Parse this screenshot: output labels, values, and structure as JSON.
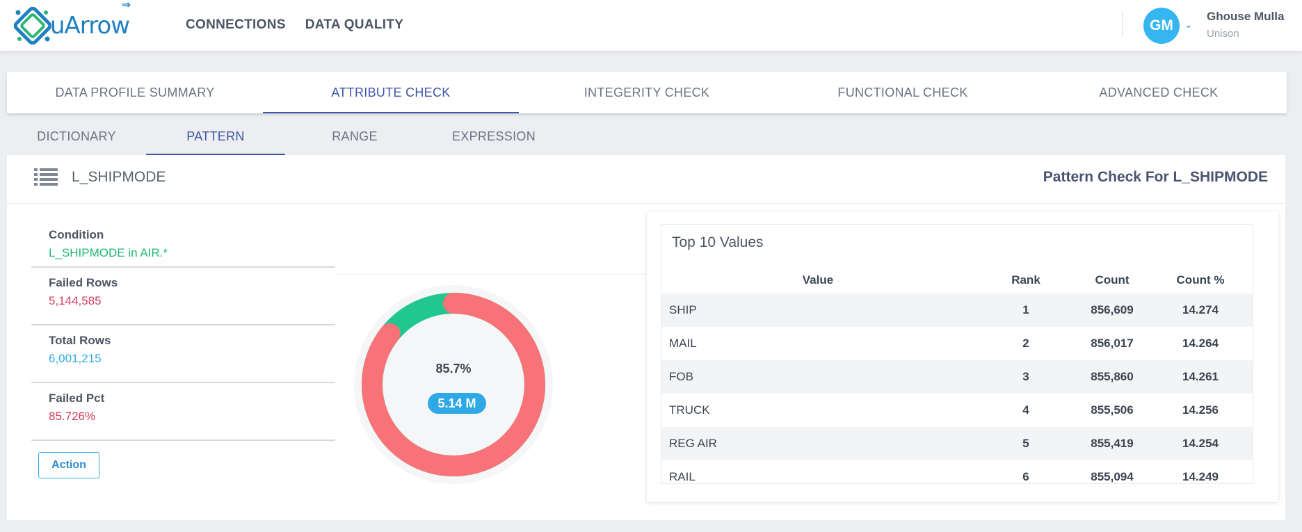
{
  "header": {
    "logo_text": "uArrow",
    "nav": [
      "CONNECTIONS",
      "DATA QUALITY"
    ],
    "user": {
      "initials": "GM",
      "name": "Ghouse Mulla",
      "org": "Unison"
    }
  },
  "main_tabs": [
    "DATA PROFILE SUMMARY",
    "ATTRIBUTE CHECK",
    "INTEGERITY CHECK",
    "FUNCTIONAL CHECK",
    "ADVANCED CHECK"
  ],
  "sub_tabs": [
    "DICTIONARY",
    "PATTERN",
    "RANGE",
    "EXPRESSION"
  ],
  "card": {
    "field": "L_SHIPMODE",
    "title": "Pattern Check For L_SHIPMODE",
    "stats": [
      {
        "label": "Condition",
        "value": "L_SHIPMODE in AIR.*"
      },
      {
        "label": "Failed Rows",
        "value": "5,144,585"
      },
      {
        "label": "Total Rows",
        "value": "6,001,215"
      },
      {
        "label": "Failed Pct",
        "value": "85.726%"
      }
    ],
    "action_label": "Action",
    "donut": {
      "pct_label": "85.7%",
      "badge": "5.14 M",
      "failed_fraction": 0.857,
      "colors": {
        "failed": "#f87377",
        "passed": "#22c78f"
      }
    }
  },
  "top_values": {
    "title": "Top 10 Values",
    "columns": [
      "Value",
      "Rank",
      "Count",
      "Count %"
    ],
    "rows": [
      [
        "SHIP",
        "1",
        "856,609",
        "14.274"
      ],
      [
        "MAIL",
        "2",
        "856,017",
        "14.264"
      ],
      [
        "FOB",
        "3",
        "855,860",
        "14.261"
      ],
      [
        "TRUCK",
        "4",
        "855,506",
        "14.256"
      ],
      [
        "REG AIR",
        "5",
        "855,419",
        "14.254"
      ],
      [
        "RAIL",
        "6",
        "855,094",
        "14.249"
      ]
    ]
  }
}
